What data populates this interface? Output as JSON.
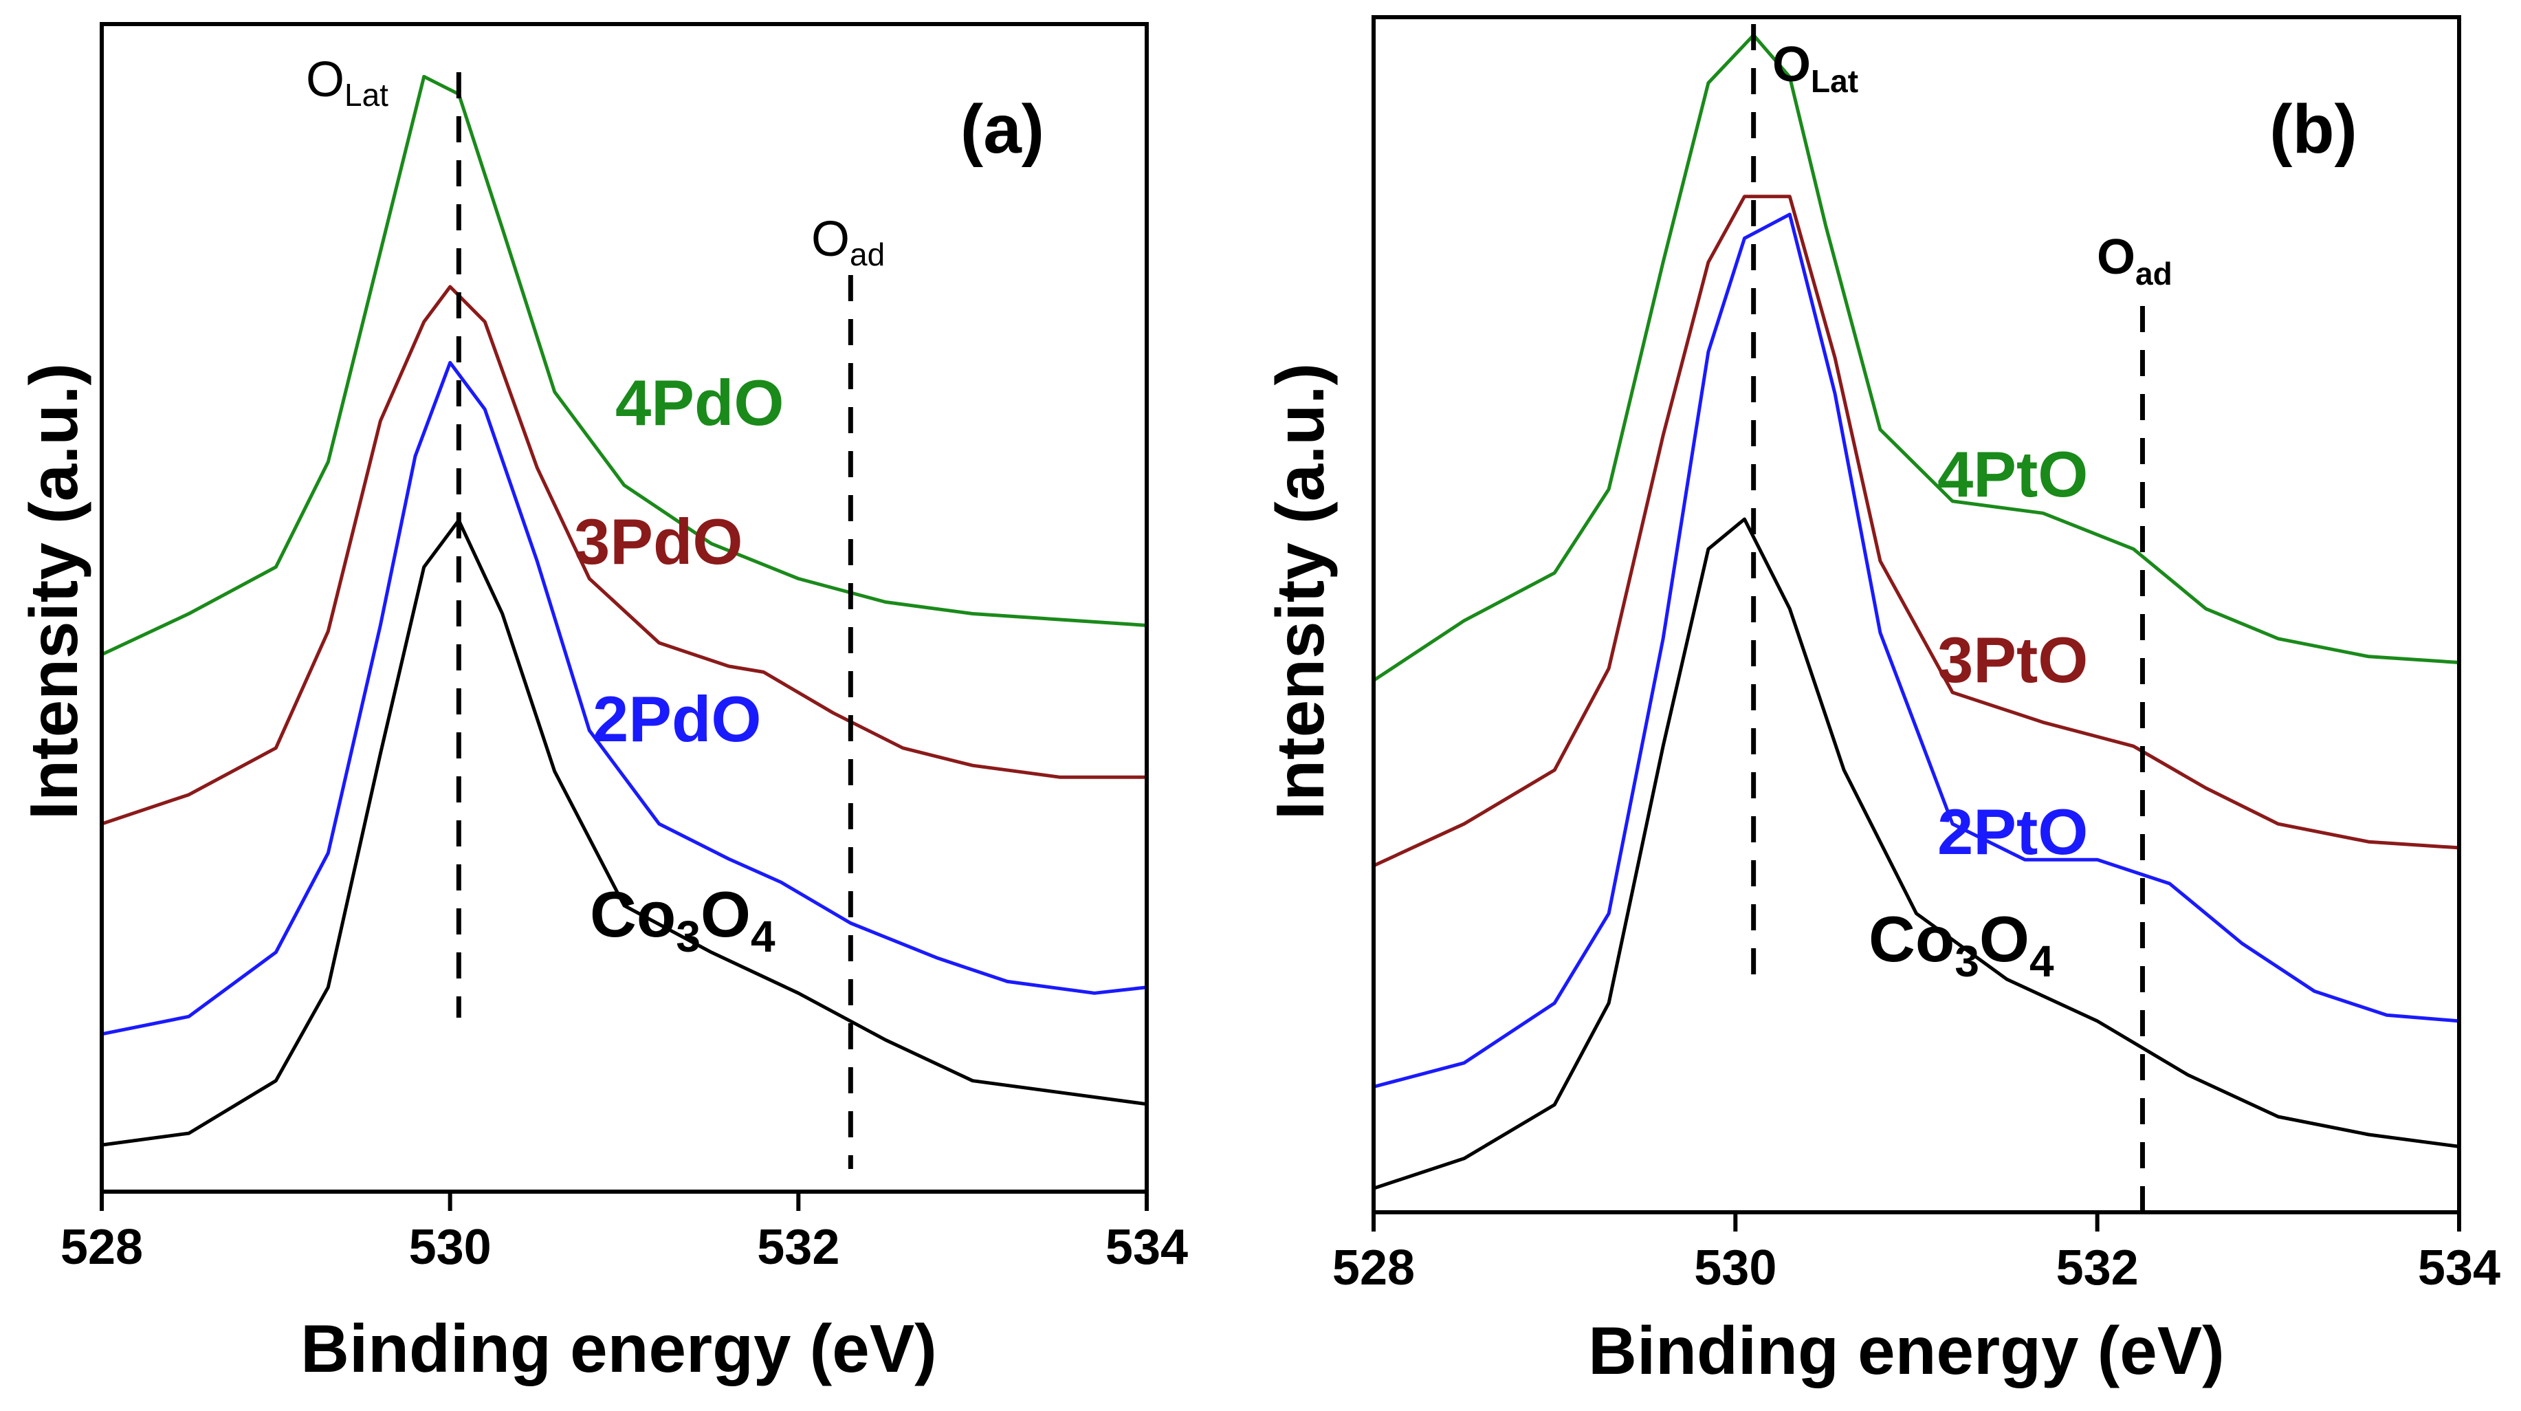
{
  "chart_data": [
    {
      "panel": "(a)",
      "type": "line",
      "xlabel": "Binding energy (eV)",
      "ylabel": "Intensity (a.u.)",
      "xlim": [
        528,
        534
      ],
      "ylim": [
        0,
        10
      ],
      "xticks": [
        "528",
        "530",
        "532",
        "534"
      ],
      "grid": false,
      "reference_lines": [
        {
          "name": "lattice-oxygen",
          "label_main": "O",
          "label_sub": "Lat",
          "x": 530.05
        },
        {
          "name": "adsorbed-oxygen",
          "label_main": "O",
          "label_sub": "ad",
          "x": 532.3
        }
      ],
      "series": [
        {
          "name": "4PdO",
          "color": "#1a8a1a",
          "x": [
            528,
            528.5,
            529.0,
            529.3,
            529.6,
            529.85,
            530.05,
            530.3,
            530.6,
            531.0,
            531.5,
            532.0,
            532.5,
            533.0,
            533.5,
            534
          ],
          "y": [
            4.6,
            4.95,
            5.35,
            6.25,
            8.05,
            9.55,
            9.4,
            8.25,
            6.85,
            6.05,
            5.55,
            5.25,
            5.05,
            4.95,
            4.9,
            4.85
          ]
        },
        {
          "name": "3PdO",
          "color": "#8b1a1a",
          "x": [
            528,
            528.5,
            529.0,
            529.3,
            529.6,
            529.85,
            530.0,
            530.2,
            530.5,
            530.8,
            531.2,
            531.6,
            531.8,
            532.2,
            532.6,
            533.0,
            533.5,
            534
          ],
          "y": [
            3.15,
            3.4,
            3.8,
            4.8,
            6.6,
            7.45,
            7.75,
            7.45,
            6.2,
            5.25,
            4.7,
            4.5,
            4.45,
            4.1,
            3.8,
            3.65,
            3.55,
            3.55
          ]
        },
        {
          "name": "2PdO",
          "color": "#1a1aff",
          "x": [
            528,
            528.5,
            529.0,
            529.3,
            529.6,
            529.8,
            530.0,
            530.2,
            530.5,
            530.8,
            531.2,
            531.6,
            531.9,
            532.3,
            532.8,
            533.2,
            533.7,
            534
          ],
          "y": [
            1.35,
            1.5,
            2.05,
            2.9,
            4.85,
            6.3,
            7.1,
            6.7,
            5.4,
            3.95,
            3.15,
            2.85,
            2.65,
            2.3,
            2.0,
            1.8,
            1.7,
            1.75
          ]
        },
        {
          "name": "Co3O4",
          "color": "#000000",
          "x": [
            528,
            528.5,
            529.0,
            529.3,
            529.6,
            529.85,
            530.05,
            530.3,
            530.6,
            531.0,
            531.5,
            532.0,
            532.5,
            533.0,
            533.5,
            534
          ],
          "y": [
            0.4,
            0.5,
            0.95,
            1.75,
            3.75,
            5.35,
            5.75,
            4.95,
            3.6,
            2.45,
            2.05,
            1.7,
            1.3,
            0.95,
            0.85,
            0.75
          ]
        }
      ],
      "labels": [
        {
          "series": "4PdO",
          "text": "4PdO"
        },
        {
          "series": "3PdO",
          "text": "3PdO"
        },
        {
          "series": "2PdO",
          "text": "2PdO"
        },
        {
          "series": "Co3O4",
          "text_main": "Co",
          "sub1": "3",
          "mid": "O",
          "sub2": "4"
        }
      ]
    },
    {
      "panel": "(b)",
      "type": "line",
      "xlabel": "Binding energy (eV)",
      "ylabel": "Intensity (a.u.)",
      "xlim": [
        528,
        534
      ],
      "ylim": [
        0,
        10
      ],
      "xticks": [
        "528",
        "530",
        "532",
        "534"
      ],
      "grid": false,
      "reference_lines": [
        {
          "name": "lattice-oxygen",
          "label_main": "O",
          "label_sub": "Lat",
          "x": 530.1
        },
        {
          "name": "adsorbed-oxygen",
          "label_main": "O",
          "label_sub": "ad",
          "x": 532.25
        }
      ],
      "series": [
        {
          "name": "4PtO",
          "color": "#1a8a1a",
          "x": [
            528,
            528.5,
            529.0,
            529.3,
            529.6,
            529.85,
            530.1,
            530.3,
            530.5,
            530.8,
            531.2,
            531.7,
            532.2,
            532.6,
            533.0,
            533.5,
            534
          ],
          "y": [
            4.45,
            4.95,
            5.35,
            6.05,
            7.95,
            9.45,
            9.85,
            9.5,
            8.25,
            6.55,
            5.95,
            5.85,
            5.55,
            5.05,
            4.8,
            4.65,
            4.6
          ]
        },
        {
          "name": "3PtO",
          "color": "#8b1a1a",
          "x": [
            528,
            528.5,
            529.0,
            529.3,
            529.6,
            529.85,
            530.05,
            530.3,
            530.55,
            530.8,
            531.2,
            531.7,
            532.2,
            532.6,
            533.0,
            533.5,
            534
          ],
          "y": [
            2.9,
            3.25,
            3.7,
            4.55,
            6.5,
            7.95,
            8.5,
            8.5,
            7.15,
            5.45,
            4.35,
            4.1,
            3.9,
            3.55,
            3.25,
            3.1,
            3.05
          ]
        },
        {
          "name": "2PtO",
          "color": "#1a1aff",
          "x": [
            528,
            528.5,
            529.0,
            529.3,
            529.6,
            529.85,
            530.05,
            530.3,
            530.55,
            530.8,
            531.2,
            531.6,
            532.0,
            532.4,
            532.8,
            533.2,
            533.6,
            534
          ],
          "y": [
            1.05,
            1.25,
            1.75,
            2.5,
            4.8,
            7.2,
            8.15,
            8.35,
            6.85,
            4.85,
            3.25,
            2.95,
            2.95,
            2.75,
            2.25,
            1.85,
            1.65,
            1.6
          ]
        },
        {
          "name": "Co3O4",
          "color": "#000000",
          "x": [
            528,
            528.5,
            529.0,
            529.3,
            529.6,
            529.85,
            530.05,
            530.3,
            530.6,
            531.0,
            531.5,
            532.0,
            532.5,
            533.0,
            533.5,
            534
          ],
          "y": [
            0.2,
            0.45,
            0.9,
            1.75,
            3.9,
            5.55,
            5.8,
            5.05,
            3.7,
            2.5,
            1.95,
            1.6,
            1.15,
            0.8,
            0.65,
            0.55
          ]
        }
      ],
      "labels": [
        {
          "series": "4PtO",
          "text": "4PtO"
        },
        {
          "series": "3PtO",
          "text": "3PtO"
        },
        {
          "series": "2PtO",
          "text": "2PtO"
        },
        {
          "series": "Co3O4",
          "text_main": "Co",
          "sub1": "3",
          "mid": "O",
          "sub2": "4"
        }
      ]
    }
  ]
}
